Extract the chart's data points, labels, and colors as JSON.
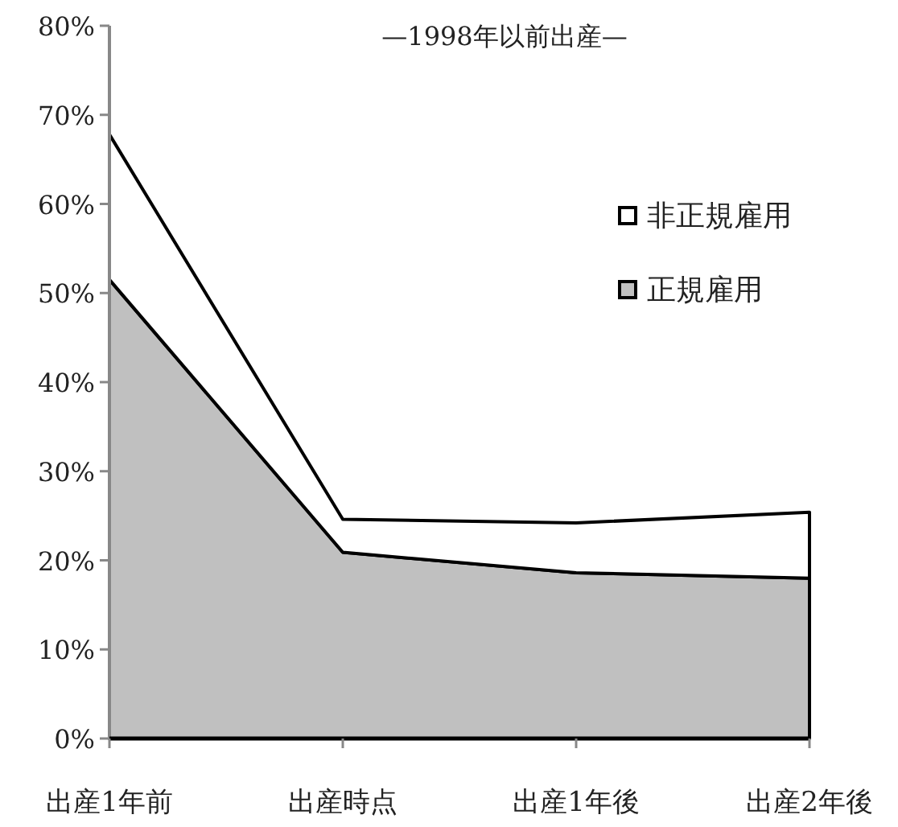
{
  "chart_data": {
    "type": "area",
    "stacked": true,
    "title": "—1998年以前出産—",
    "categories": [
      "出産1年前",
      "出産時点",
      "出産1年後",
      "出産2年後"
    ],
    "series": [
      {
        "name": "正規雇用",
        "color": "#c0c0c0",
        "values": [
          51.5,
          20.9,
          18.6,
          18.0
        ]
      },
      {
        "name": "非正規雇用",
        "color": "#ffffff",
        "values": [
          16.3,
          3.7,
          5.6,
          7.4
        ]
      }
    ],
    "ylim": [
      0,
      80
    ],
    "yticks": [
      {
        "value": 0,
        "label": "0%"
      },
      {
        "value": 10,
        "label": "10%"
      },
      {
        "value": 20,
        "label": "20%"
      },
      {
        "value": 30,
        "label": "30%"
      },
      {
        "value": 40,
        "label": "40%"
      },
      {
        "value": 50,
        "label": "50%"
      },
      {
        "value": 60,
        "label": "60%"
      },
      {
        "value": 70,
        "label": "70%"
      },
      {
        "value": 80,
        "label": "80%"
      }
    ],
    "grid": false,
    "legend": "top right"
  }
}
